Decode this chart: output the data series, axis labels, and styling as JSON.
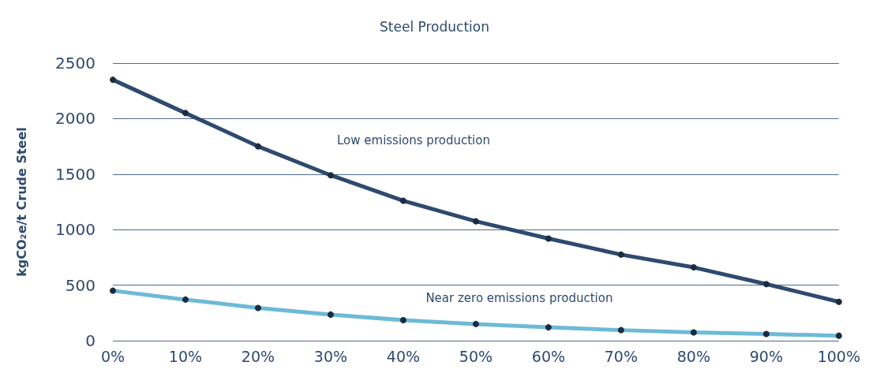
{
  "chart_data": {
    "type": "line",
    "title": "Steel Production",
    "ylabel": "kgCO₂e/t Crude Steel",
    "categories": [
      "0%",
      "10%",
      "20%",
      "30%",
      "40%",
      "50%",
      "60%",
      "70%",
      "80%",
      "90%",
      "100%"
    ],
    "series": [
      {
        "name": "Low emissions production",
        "color": "#2e4a6e",
        "values": [
          2350,
          2050,
          1750,
          1490,
          1260,
          1075,
          920,
          775,
          660,
          510,
          350
        ]
      },
      {
        "name": "Near zero emissions production",
        "color": "#6dbad8",
        "values": [
          450,
          370,
          295,
          235,
          185,
          150,
          120,
          95,
          75,
          60,
          45
        ]
      }
    ],
    "ylim": [
      0,
      2500
    ],
    "yticks": [
      0,
      500,
      1000,
      1500,
      2000,
      2500
    ],
    "grid": "y",
    "legend": false,
    "marker": "circle",
    "line_style": "solid"
  }
}
